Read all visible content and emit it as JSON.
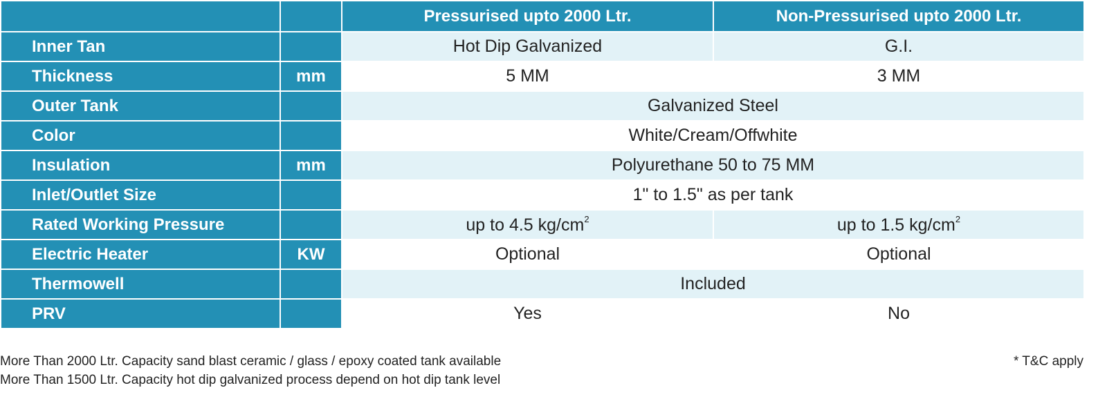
{
  "colors": {
    "header": "#2390b5",
    "row_light": "#e2f2f7",
    "row_white": "#ffffff"
  },
  "header": {
    "col_a": "Pressurised  upto 2000 Ltr.",
    "col_b": "Non-Pressurised  upto 2000 Ltr."
  },
  "rows": [
    {
      "label": "Inner Tan",
      "unit": "",
      "a": "Hot Dip Galvanized",
      "b": "G.I."
    },
    {
      "label": "Thickness",
      "unit": "mm",
      "a": "5 MM",
      "b": "3 MM"
    },
    {
      "label": "Outer Tank",
      "unit": "",
      "span": "Galvanized Steel"
    },
    {
      "label": "Color",
      "unit": "",
      "span": "White/Cream/Offwhite"
    },
    {
      "label": "Insulation",
      "unit": "mm",
      "span": "Polyurethane 50 to 75 MM"
    },
    {
      "label": "Inlet/Outlet Size",
      "unit": "",
      "span": "1\" to 1.5\" as per tank"
    },
    {
      "label": "Rated Working Pressure",
      "unit": "",
      "a": "up to 4.5 kg/cm",
      "a_sup": "2",
      "b": "up to 1.5 kg/cm",
      "b_sup": "2"
    },
    {
      "label": "Electric Heater",
      "unit": "KW",
      "a": "Optional",
      "b": "Optional"
    },
    {
      "label": "Thermowell",
      "unit": "",
      "span": "Included"
    },
    {
      "label": "PRV",
      "unit": "",
      "a": "Yes",
      "b": "No"
    }
  ],
  "notes": [
    "More Than 2000 Ltr. Capacity sand blast ceramic / glass / epoxy coated tank available",
    "More Than 1500 Ltr. Capacity hot dip galvanized process depend on hot dip tank level"
  ],
  "tc": "* T&C apply"
}
